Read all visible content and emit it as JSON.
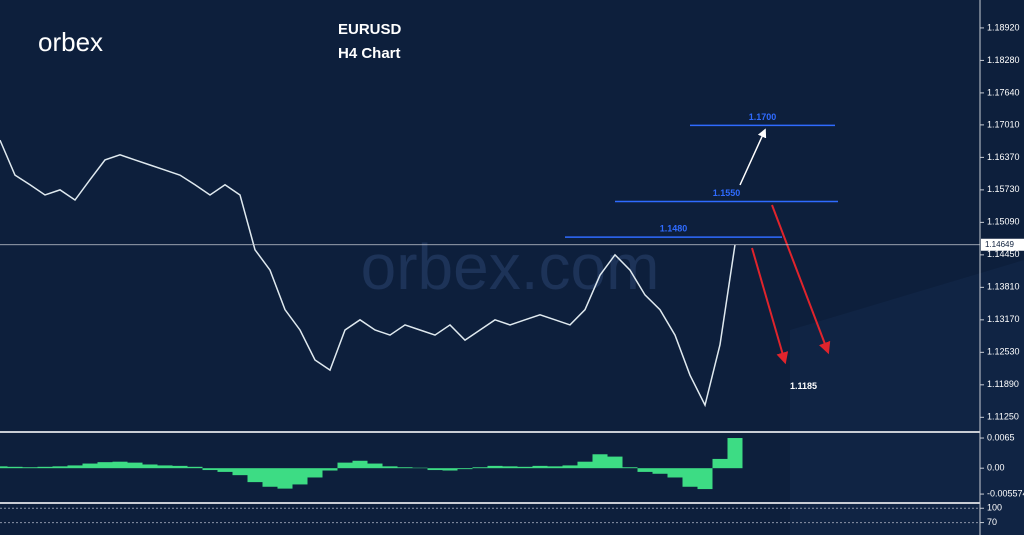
{
  "branding": {
    "logo": "orbex",
    "watermark": "orbex.com"
  },
  "chart_data": [
    {
      "type": "line",
      "title": "EURUSD",
      "subtitle": "H4 Chart",
      "color": "#dfe9ef",
      "values": [
        1.1671,
        1.1602,
        1.1583,
        1.1563,
        1.1573,
        1.1553,
        1.1593,
        1.1632,
        1.1642,
        1.1632,
        1.1622,
        1.1612,
        1.1602,
        1.1583,
        1.1563,
        1.1583,
        1.1563,
        1.1455,
        1.1415,
        1.1337,
        1.1297,
        1.1238,
        1.1218,
        1.1297,
        1.1317,
        1.1297,
        1.1287,
        1.1307,
        1.1297,
        1.1287,
        1.1307,
        1.1277,
        1.1297,
        1.1317,
        1.1307,
        1.1317,
        1.1327,
        1.1317,
        1.1307,
        1.1337,
        1.1405,
        1.1445,
        1.1415,
        1.1366,
        1.1337,
        1.1287,
        1.1208,
        1.1149,
        1.1268,
        1.1465
      ],
      "ylim": [
        1.11,
        1.1947
      ],
      "yticks": [
        {
          "value": 1.1892,
          "label": "1.18920"
        },
        {
          "value": 1.1828,
          "label": "1.18280"
        },
        {
          "value": 1.1764,
          "label": "1.17640"
        },
        {
          "value": 1.1701,
          "label": "1.17010"
        },
        {
          "value": 1.1637,
          "label": "1.16370"
        },
        {
          "value": 1.1573,
          "label": "1.15730"
        },
        {
          "value": 1.1509,
          "label": "1.15090"
        },
        {
          "value": 1.1445,
          "label": "1.14450"
        },
        {
          "value": 1.1381,
          "label": "1.13810"
        },
        {
          "value": 1.1317,
          "label": "1.13170"
        },
        {
          "value": 1.1253,
          "label": "1.12530"
        },
        {
          "value": 1.1189,
          "label": "1.11890"
        },
        {
          "value": 1.1125,
          "label": "1.11250"
        }
      ],
      "current_price": 1.14649,
      "levels": [
        {
          "value": 1.17,
          "label": "1.1700"
        },
        {
          "value": 1.155,
          "label": "1.1550"
        },
        {
          "value": 1.148,
          "label": "1.1480"
        }
      ],
      "level_color": "#2f6bff",
      "target": {
        "value": 1.1185,
        "label": "1.1185"
      }
    },
    {
      "type": "bar",
      "color": "#3ddc84",
      "values": [
        0.0004,
        0.0003,
        0.0002,
        0.0003,
        0.0004,
        0.0006,
        0.001,
        0.0013,
        0.0014,
        0.0012,
        0.0008,
        0.0006,
        0.0005,
        0.0003,
        -0.0004,
        -0.0008,
        -0.0015,
        -0.003,
        -0.004,
        -0.0044,
        -0.0035,
        -0.002,
        -0.0005,
        0.0012,
        0.0016,
        0.001,
        0.0004,
        0.0002,
        0.0001,
        -0.0004,
        -0.0005,
        -0.0002,
        0.0002,
        0.0005,
        0.0004,
        0.0003,
        0.0005,
        0.0004,
        0.0006,
        0.0014,
        0.003,
        0.0025,
        0.0002,
        -0.0008,
        -0.0012,
        -0.002,
        -0.004,
        -0.0045,
        0.002,
        0.0065
      ],
      "ylim": [
        -0.0075,
        0.0078
      ],
      "yticks": [
        0.0065,
        {
          "value": 0,
          "label": "0.00"
        },
        -0.005574
      ]
    },
    {
      "type": "line",
      "ylim": [
        44,
        111
      ],
      "yticks": [
        100,
        70
      ]
    }
  ]
}
